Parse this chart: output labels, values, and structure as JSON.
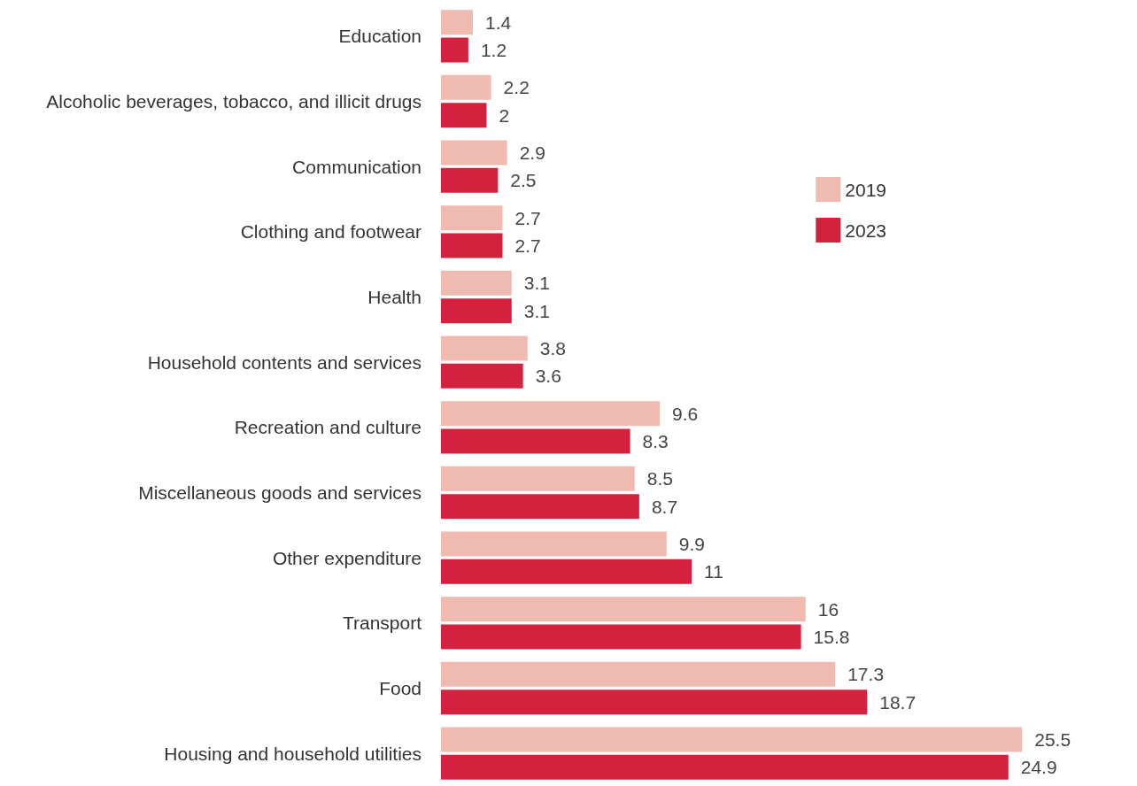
{
  "chart_data": {
    "type": "bar",
    "orientation": "horizontal",
    "categories": [
      "Education",
      "Alcoholic beverages, tobacco, and illicit drugs",
      "Communication",
      "Clothing and footwear",
      "Health",
      "Household contents and services",
      "Recreation and culture",
      "Miscellaneous goods and services",
      "Other expenditure",
      "Transport",
      "Food",
      "Housing and household utilities"
    ],
    "series": [
      {
        "name": "2019",
        "color": "#efbab0",
        "values": [
          1.4,
          2.2,
          2.9,
          2.7,
          3.1,
          3.8,
          9.6,
          8.5,
          9.9,
          16,
          17.3,
          25.5
        ]
      },
      {
        "name": "2023",
        "color": "#d4213d",
        "values": [
          1.2,
          2,
          2.5,
          2.7,
          3.1,
          3.6,
          8.3,
          8.7,
          11,
          15.8,
          18.7,
          24.9
        ]
      }
    ],
    "data_labels": true,
    "legend": "right"
  }
}
